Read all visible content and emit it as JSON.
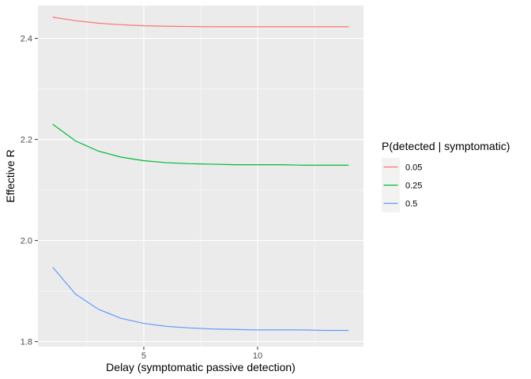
{
  "chart_data": {
    "type": "line",
    "xlabel": "Delay (symptomatic passive detection)",
    "ylabel": "Effective R",
    "xlim": [
      0.35,
      14.65
    ],
    "ylim": [
      1.79,
      2.465
    ],
    "x_ticks": [
      5,
      10
    ],
    "x_tick_labels": [
      "5",
      "10"
    ],
    "y_ticks": [
      1.8,
      2.0,
      2.2,
      2.4
    ],
    "y_tick_labels": [
      "1.8",
      "2.0",
      "2.2",
      "2.4"
    ],
    "grid": true,
    "legend": {
      "title": "P(detected |  symptomatic)",
      "position": "right"
    },
    "x": [
      1,
      2,
      3,
      4,
      5,
      6,
      7,
      8,
      9,
      10,
      11,
      12,
      13,
      14
    ],
    "series": [
      {
        "name": "0.05",
        "color": "#F8766D",
        "values": [
          2.442,
          2.435,
          2.43,
          2.427,
          2.425,
          2.424,
          2.4235,
          2.423,
          2.423,
          2.423,
          2.423,
          2.423,
          2.423,
          2.423
        ]
      },
      {
        "name": "0.25",
        "color": "#00BA38",
        "values": [
          2.23,
          2.197,
          2.177,
          2.165,
          2.158,
          2.154,
          2.152,
          2.151,
          2.15,
          2.15,
          2.15,
          2.149,
          2.149,
          2.149
        ]
      },
      {
        "name": "0.5",
        "color": "#619CFF",
        "values": [
          1.947,
          1.894,
          1.864,
          1.846,
          1.836,
          1.83,
          1.827,
          1.825,
          1.824,
          1.823,
          1.823,
          1.823,
          1.822,
          1.822
        ]
      }
    ]
  }
}
